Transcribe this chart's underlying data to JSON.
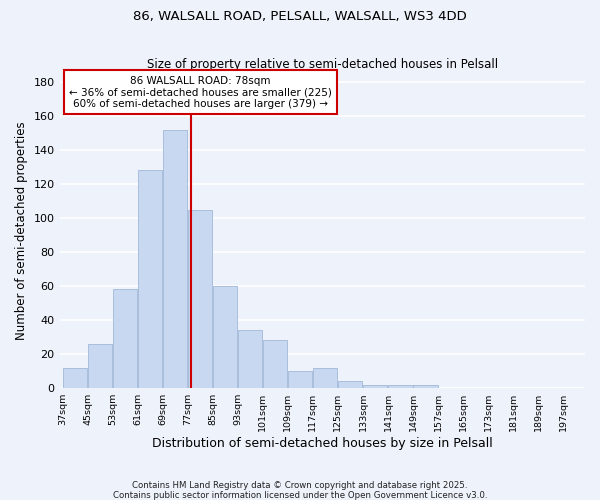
{
  "title1": "86, WALSALL ROAD, PELSALL, WALSALL, WS3 4DD",
  "title2": "Size of property relative to semi-detached houses in Pelsall",
  "xlabel": "Distribution of semi-detached houses by size in Pelsall",
  "ylabel": "Number of semi-detached properties",
  "bin_edges": [
    37,
    45,
    53,
    61,
    69,
    77,
    85,
    93,
    101,
    109,
    117,
    125,
    133,
    141,
    149,
    157,
    165,
    173,
    181,
    189,
    197
  ],
  "bar_heights": [
    12,
    26,
    58,
    128,
    152,
    105,
    60,
    34,
    28,
    10,
    12,
    4,
    2,
    2,
    2,
    0,
    0,
    0,
    0,
    0
  ],
  "bar_color": "#c8d8f0",
  "bar_edgecolor": "#a0b8d8",
  "property_size": 78,
  "vline_color": "#cc0000",
  "annotation_title": "86 WALSALL ROAD: 78sqm",
  "annotation_line1": "← 36% of semi-detached houses are smaller (225)",
  "annotation_line2": "60% of semi-detached houses are larger (379) →",
  "annotation_box_facecolor": "#ffffff",
  "annotation_box_edgecolor": "#cc0000",
  "tick_labels": [
    "37sqm",
    "45sqm",
    "53sqm",
    "61sqm",
    "69sqm",
    "77sqm",
    "85sqm",
    "93sqm",
    "101sqm",
    "109sqm",
    "117sqm",
    "125sqm",
    "133sqm",
    "141sqm",
    "149sqm",
    "157sqm",
    "165sqm",
    "173sqm",
    "181sqm",
    "189sqm",
    "197sqm"
  ],
  "ylim": [
    0,
    185
  ],
  "yticks": [
    0,
    20,
    40,
    60,
    80,
    100,
    120,
    140,
    160,
    180
  ],
  "background_color": "#eef2fa",
  "grid_color": "#ffffff",
  "footer1": "Contains HM Land Registry data © Crown copyright and database right 2025.",
  "footer2": "Contains public sector information licensed under the Open Government Licence v3.0."
}
